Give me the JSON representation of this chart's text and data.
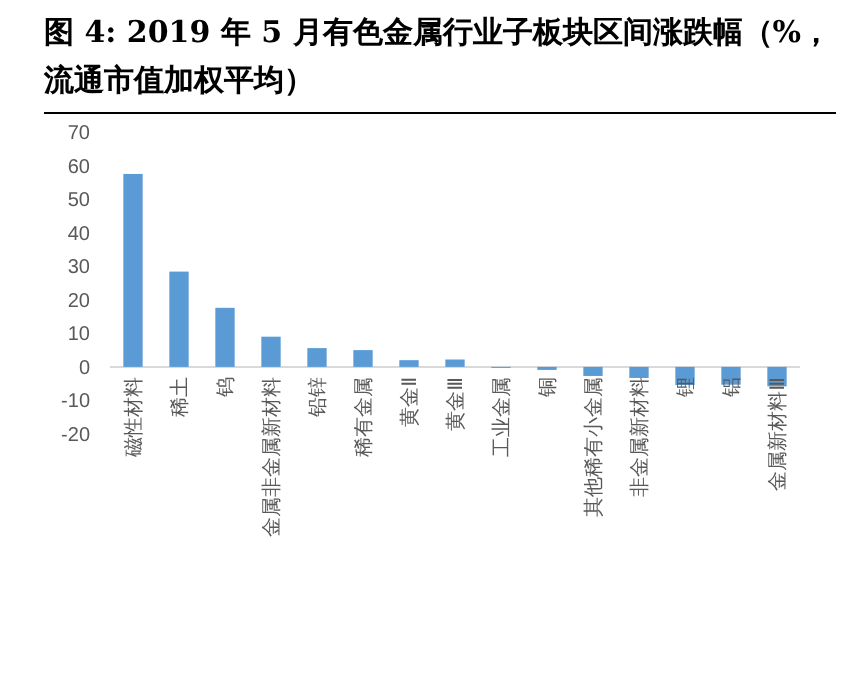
{
  "chart_data": {
    "type": "bar",
    "title": "图 4: 2019 年 5 月有色金属行业子板块区间涨跌幅（%，流通市值加权平均）",
    "categories": [
      "磁性材料",
      "稀土",
      "钨",
      "金属非金属新材料",
      "铅锌",
      "稀有金属",
      "黄金Ⅱ",
      "黄金Ⅲ",
      "工业金属",
      "铜",
      "其他稀有小金属",
      "非金属新材料",
      "锂",
      "铝",
      "金属新材料Ⅲ"
    ],
    "values": [
      57.5,
      28.4,
      17.6,
      9.0,
      5.6,
      5.0,
      2.0,
      2.2,
      -0.3,
      -0.9,
      -2.7,
      -3.3,
      -5.4,
      -5.3,
      -5.8
    ],
    "color": "#5b9bd5",
    "ylim": [
      -20,
      70
    ],
    "yticks": [
      -20,
      -10,
      0,
      10,
      20,
      30,
      40,
      50,
      60,
      70
    ]
  }
}
